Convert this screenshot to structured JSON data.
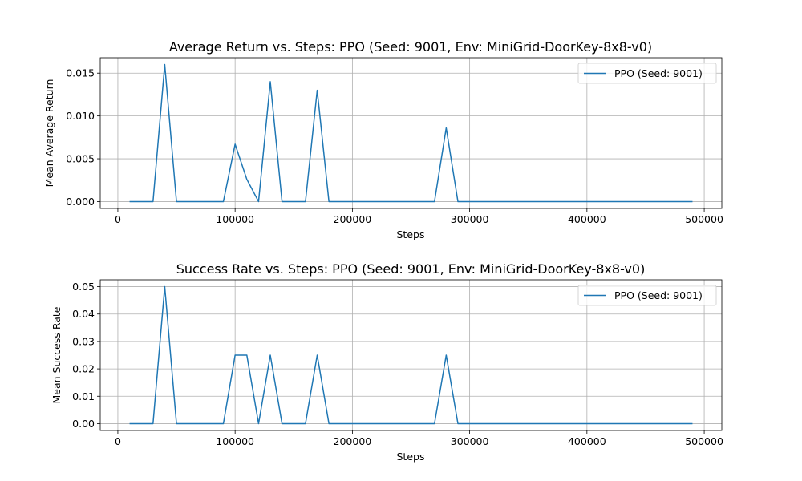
{
  "chart_data": [
    {
      "type": "line",
      "title": "Average Return vs. Steps: PPO (Seed: 9001, Env: MiniGrid-DoorKey-8x8-v0)",
      "xlabel": "Steps",
      "ylabel": "Mean Average Return",
      "xlim": [
        -15000,
        515000
      ],
      "ylim": [
        -0.0008,
        0.0168
      ],
      "xticks": [
        0,
        100000,
        200000,
        300000,
        400000,
        500000
      ],
      "yticks": [
        0.0,
        0.005,
        0.01,
        0.015
      ],
      "ytick_labels": [
        "0.000",
        "0.005",
        "0.010",
        "0.015"
      ],
      "grid": true,
      "legend_position": "top-right",
      "series": [
        {
          "name": "PPO (Seed: 9001)",
          "color": "#1f77b4",
          "x": [
            10000,
            20000,
            30000,
            40000,
            50000,
            60000,
            70000,
            80000,
            90000,
            100000,
            110000,
            120000,
            130000,
            140000,
            150000,
            160000,
            170000,
            180000,
            190000,
            200000,
            210000,
            220000,
            230000,
            240000,
            250000,
            260000,
            270000,
            280000,
            290000,
            300000,
            310000,
            320000,
            330000,
            340000,
            350000,
            360000,
            370000,
            380000,
            390000,
            400000,
            410000,
            420000,
            430000,
            440000,
            450000,
            460000,
            470000,
            480000,
            490000
          ],
          "y": [
            0,
            0,
            0,
            0.016,
            0,
            0,
            0,
            0,
            0,
            0.0067,
            0.0026,
            0,
            0.014,
            0,
            0,
            0,
            0.013,
            0,
            0,
            0,
            0,
            0,
            0,
            0,
            0,
            0,
            0,
            0.0086,
            0,
            0,
            0,
            0,
            0,
            0,
            0,
            0,
            0,
            0,
            0,
            0,
            0,
            0,
            0,
            0,
            0,
            0,
            0,
            0,
            0
          ]
        }
      ]
    },
    {
      "type": "line",
      "title": "Success Rate vs. Steps: PPO (Seed: 9001, Env: MiniGrid-DoorKey-8x8-v0)",
      "xlabel": "Steps",
      "ylabel": "Mean Success Rate",
      "xlim": [
        -15000,
        515000
      ],
      "ylim": [
        -0.0025,
        0.0525
      ],
      "xticks": [
        0,
        100000,
        200000,
        300000,
        400000,
        500000
      ],
      "yticks": [
        0.0,
        0.01,
        0.02,
        0.03,
        0.04,
        0.05
      ],
      "ytick_labels": [
        "0.00",
        "0.01",
        "0.02",
        "0.03",
        "0.04",
        "0.05"
      ],
      "grid": true,
      "legend_position": "top-right",
      "series": [
        {
          "name": "PPO (Seed: 9001)",
          "color": "#1f77b4",
          "x": [
            10000,
            20000,
            30000,
            40000,
            50000,
            60000,
            70000,
            80000,
            90000,
            100000,
            110000,
            120000,
            130000,
            140000,
            150000,
            160000,
            170000,
            180000,
            190000,
            200000,
            210000,
            220000,
            230000,
            240000,
            250000,
            260000,
            270000,
            280000,
            290000,
            300000,
            310000,
            320000,
            330000,
            340000,
            350000,
            360000,
            370000,
            380000,
            390000,
            400000,
            410000,
            420000,
            430000,
            440000,
            450000,
            460000,
            470000,
            480000,
            490000
          ],
          "y": [
            0,
            0,
            0,
            0.05,
            0,
            0,
            0,
            0,
            0,
            0.025,
            0.025,
            0,
            0.025,
            0,
            0,
            0,
            0.025,
            0,
            0,
            0,
            0,
            0,
            0,
            0,
            0,
            0,
            0,
            0.025,
            0,
            0,
            0,
            0,
            0,
            0,
            0,
            0,
            0,
            0,
            0,
            0,
            0,
            0,
            0,
            0,
            0,
            0,
            0,
            0,
            0
          ]
        }
      ]
    }
  ]
}
